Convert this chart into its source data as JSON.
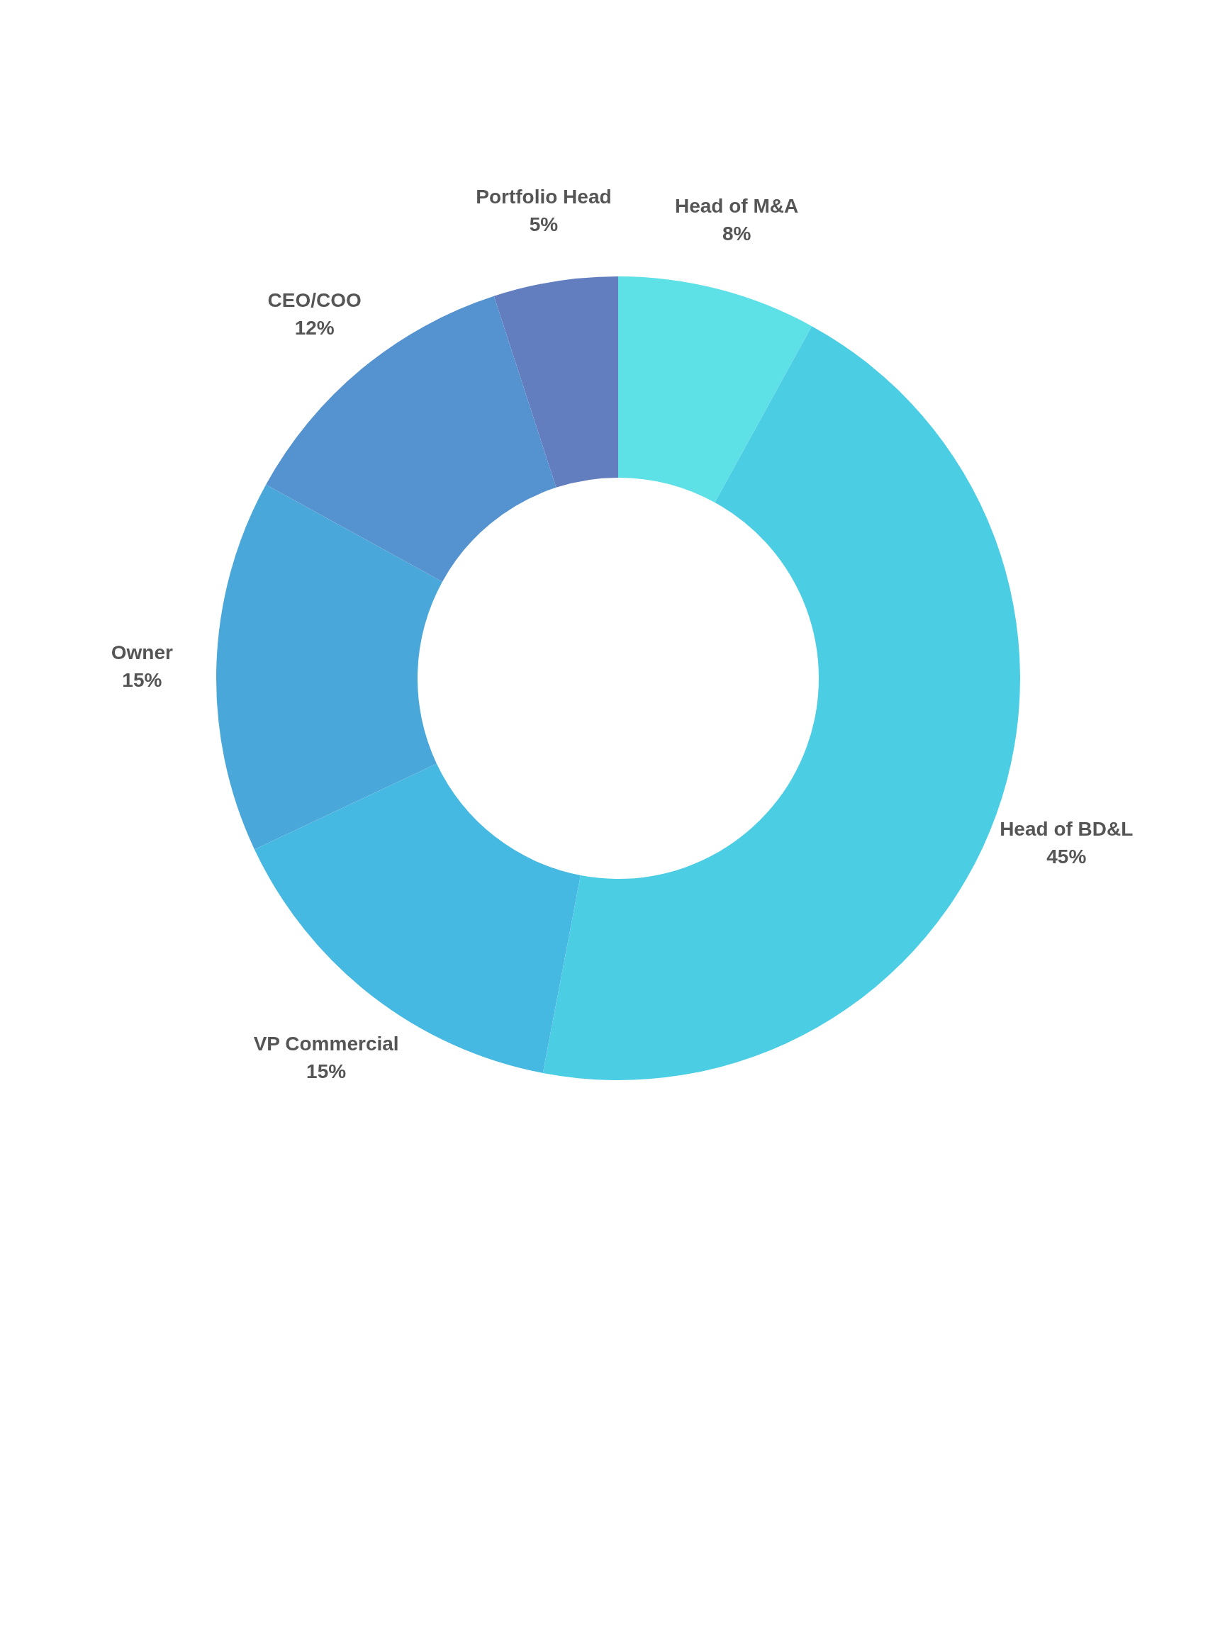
{
  "chart_data": {
    "type": "donut",
    "categories": [
      "Head of M&A",
      "Head of BD&L",
      "VP Commercial",
      "Owner",
      "CEO/COO",
      "Portfolio Head"
    ],
    "values": [
      8,
      45,
      15,
      15,
      12,
      5
    ],
    "value_labels": [
      "8%",
      "45%",
      "15%",
      "15%",
      "12%",
      "5%"
    ],
    "colors": [
      "#5de0e6",
      "#4bcde4",
      "#45b9e2",
      "#4aa7da",
      "#5593d0",
      "#627ebf"
    ]
  }
}
